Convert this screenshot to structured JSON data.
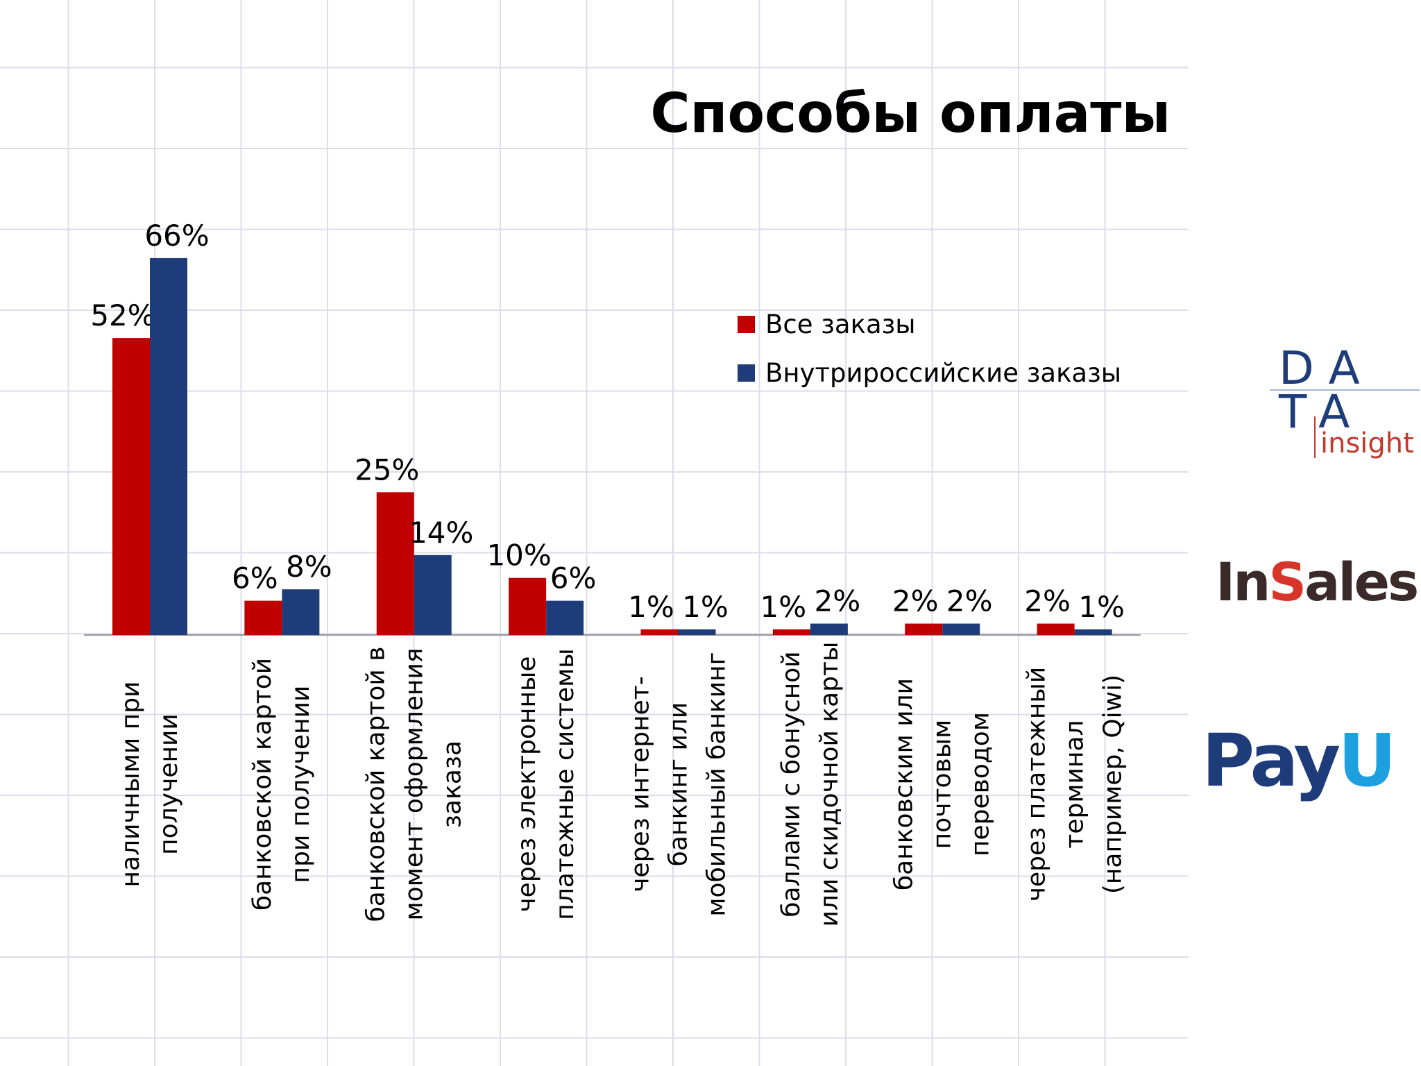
{
  "chart_data": {
    "type": "bar",
    "title": "Способы оплаты",
    "categories": [
      "наличными при\nполучении",
      "банковской картой\nпри получении",
      "банковской картой в\nмомент оформления\nзаказа",
      "через электронные\nплатежные системы",
      "через интернет-\nбанкинг или\nмобильный банкинг",
      "баллами с бонусной\nили скидочной карты",
      "банковским или\nпочтовым\nпереводом",
      "через платежный\nтерминал\n(например, Qiwi)"
    ],
    "series": [
      {
        "name": "Все заказы",
        "color": "#c00000",
        "values": [
          52,
          6,
          25,
          10,
          1,
          1,
          2,
          2
        ],
        "value_labels": [
          "52%",
          "6%",
          "25%",
          "10%",
          "1%",
          "1%",
          "2%",
          "2%"
        ]
      },
      {
        "name": "Внутрироссийские заказы",
        "color": "#1f3c7a",
        "values": [
          66,
          8,
          14,
          6,
          1,
          2,
          2,
          1
        ],
        "value_labels": [
          "66%",
          "8%",
          "14%",
          "6%",
          "1%",
          "2%",
          "2%",
          "1%"
        ]
      }
    ],
    "ylim": [
      0,
      70
    ]
  },
  "logos": {
    "data_insight": [
      "DA",
      "TA"
    ],
    "insight": "insight",
    "insales": [
      "In",
      "S",
      "ales"
    ],
    "payu": [
      "Pay",
      "U"
    ]
  }
}
